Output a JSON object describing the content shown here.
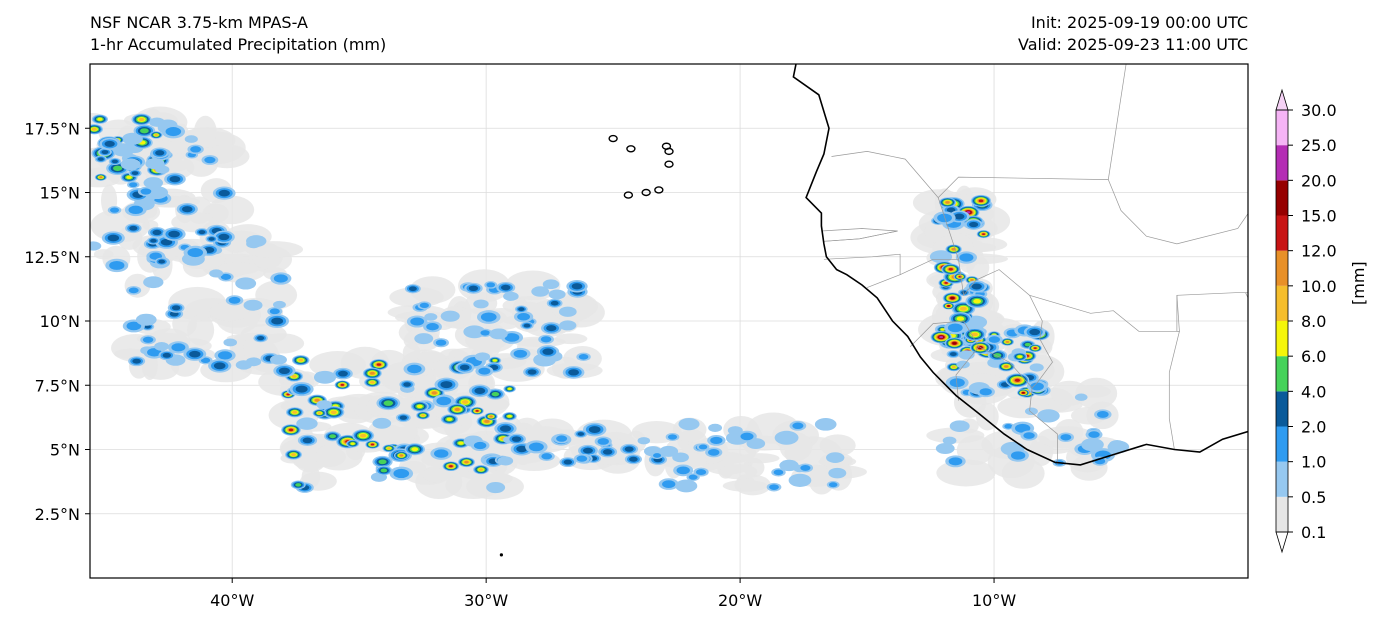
{
  "header": {
    "left_line1": "NSF NCAR 3.75-km MPAS-A",
    "left_line2": "1-hr Accumulated Precipitation (mm)",
    "right_line1": "Init: 2025-09-19 00:00 UTC",
    "right_line2": "Valid: 2025-09-23 11:00 UTC"
  },
  "map": {
    "lon_range": [
      -45.6,
      0.0
    ],
    "lat_range": [
      0.0,
      20.0
    ],
    "lon_ticks": [
      {
        "value": -40,
        "label": "40°W"
      },
      {
        "value": -30,
        "label": "30°W"
      },
      {
        "value": -20,
        "label": "20°W"
      },
      {
        "value": -10,
        "label": "10°W"
      }
    ],
    "lat_ticks": [
      {
        "value": 2.5,
        "label": "2.5°N"
      },
      {
        "value": 5,
        "label": "5°N"
      },
      {
        "value": 7.5,
        "label": "7.5°N"
      },
      {
        "value": 10,
        "label": "10°N"
      },
      {
        "value": 12.5,
        "label": "12.5°N"
      },
      {
        "value": 15,
        "label": "15°N"
      },
      {
        "value": 17.5,
        "label": "17.5°N"
      }
    ],
    "coastline": [
      [
        -17.8,
        20
      ],
      [
        -17.9,
        19.5
      ],
      [
        -16.9,
        18.8
      ],
      [
        -16.5,
        17.5
      ],
      [
        -16.7,
        16.5
      ],
      [
        -17.0,
        15.8
      ],
      [
        -17.4,
        14.8
      ],
      [
        -16.8,
        14.2
      ],
      [
        -16.8,
        13.7
      ],
      [
        -16.7,
        13.0
      ],
      [
        -16.6,
        12.5
      ],
      [
        -16.2,
        12.0
      ],
      [
        -15.8,
        11.8
      ],
      [
        -15.2,
        11.4
      ],
      [
        -14.6,
        10.9
      ],
      [
        -14.0,
        10.0
      ],
      [
        -13.4,
        9.4
      ],
      [
        -12.9,
        8.6
      ],
      [
        -12.4,
        8.0
      ],
      [
        -11.5,
        7.1
      ],
      [
        -10.6,
        6.4
      ],
      [
        -9.6,
        5.6
      ],
      [
        -8.7,
        5.0
      ],
      [
        -7.6,
        4.5
      ],
      [
        -6.6,
        4.4
      ],
      [
        -5.3,
        4.8
      ],
      [
        -4.0,
        5.2
      ],
      [
        -2.9,
        5.0
      ],
      [
        -1.9,
        4.9
      ],
      [
        -1.0,
        5.4
      ],
      [
        0.0,
        5.7
      ]
    ],
    "cape_verde": [
      [
        -25.0,
        17.1
      ],
      [
        -24.3,
        16.7
      ],
      [
        -22.9,
        16.8
      ],
      [
        -22.8,
        16.1
      ],
      [
        -24.4,
        14.9
      ],
      [
        -23.7,
        15.0
      ],
      [
        -23.2,
        15.1
      ],
      [
        -22.8,
        16.6
      ]
    ],
    "borders": [
      [
        [
          -16.4,
          16.4
        ],
        [
          -15.0,
          16.6
        ],
        [
          -13.5,
          16.3
        ],
        [
          -12.2,
          14.8
        ],
        [
          -11.4,
          15.6
        ],
        [
          -5.5,
          15.5
        ],
        [
          -4.8,
          20
        ]
      ],
      [
        [
          -16.8,
          13.5
        ],
        [
          -15.2,
          13.6
        ],
        [
          -13.8,
          13.5
        ],
        [
          -15.3,
          13.2
        ],
        [
          -16.7,
          13.1
        ]
      ],
      [
        [
          -16.7,
          12.4
        ],
        [
          -14.8,
          12.5
        ],
        [
          -13.7,
          12.6
        ],
        [
          -13.7,
          11.8
        ]
      ],
      [
        [
          -15.0,
          11.3
        ],
        [
          -13.7,
          11.8
        ],
        [
          -12.4,
          12.4
        ],
        [
          -11.4,
          12.4
        ],
        [
          -11.2,
          11.0
        ],
        [
          -10.7,
          11.6
        ],
        [
          -9.8,
          12.0
        ],
        [
          -8.6,
          11.0
        ],
        [
          -8.1,
          10.0
        ],
        [
          -8.2,
          9.3
        ],
        [
          -7.7,
          8.4
        ],
        [
          -8.3,
          7.6
        ],
        [
          -8.5,
          7.4
        ],
        [
          -8.6,
          6.5
        ],
        [
          -7.5,
          5.6
        ],
        [
          -7.5,
          4.4
        ]
      ],
      [
        [
          -13.3,
          9.0
        ],
        [
          -12.4,
          9.9
        ],
        [
          -11.2,
          10.0
        ],
        [
          -10.6,
          9.0
        ],
        [
          -11.5,
          7.9
        ],
        [
          -11.4,
          6.9
        ]
      ],
      [
        [
          -10.6,
          9.0
        ],
        [
          -9.4,
          8.4
        ],
        [
          -8.5,
          7.4
        ]
      ],
      [
        [
          -12.2,
          14.8
        ],
        [
          -11.6,
          13.0
        ],
        [
          -11.4,
          12.4
        ]
      ],
      [
        [
          -5.5,
          15.5
        ],
        [
          -5.0,
          14.3
        ],
        [
          -4.0,
          13.3
        ],
        [
          -2.8,
          13.0
        ],
        [
          -0.4,
          13.6
        ],
        [
          0.5,
          14.9
        ]
      ],
      [
        [
          -8.6,
          11.0
        ],
        [
          -6.2,
          10.3
        ],
        [
          -5.3,
          10.4
        ],
        [
          -4.3,
          9.6
        ],
        [
          -2.7,
          9.6
        ],
        [
          -2.8,
          11.0
        ],
        [
          -0.5,
          11.1
        ],
        [
          0.0,
          11.1
        ]
      ],
      [
        [
          -2.8,
          11.0
        ],
        [
          -2.8,
          9.6
        ],
        [
          -2.7,
          9.6
        ],
        [
          -3.1,
          8.0
        ],
        [
          -3.1,
          6.2
        ],
        [
          -2.9,
          5.0
        ]
      ],
      [
        [
          -0.1,
          11.1
        ],
        [
          0.3,
          10.3
        ],
        [
          0.5,
          8.8
        ],
        [
          0.6,
          7.4
        ],
        [
          0.9,
          6.0
        ],
        [
          1.2,
          6.1
        ]
      ],
      [
        [
          -16.7,
          13.1
        ],
        [
          -15.3,
          13.2
        ],
        [
          -13.8,
          13.5
        ]
      ]
    ],
    "colorbar": {
      "unit": "[mm]",
      "levels": [
        "0.1",
        "0.5",
        "1.0",
        "2.0",
        "4.0",
        "6.0",
        "8.0",
        "10.0",
        "12.0",
        "15.0",
        "20.0",
        "25.0",
        "30.0"
      ],
      "colors": [
        "#e6e6e6",
        "#96c8f0",
        "#2f9bf0",
        "#0a5a9a",
        "#46d25a",
        "#f5f50a",
        "#f5be2d",
        "#e89028",
        "#c81414",
        "#960000",
        "#b42db4",
        "#f5b4f5"
      ],
      "under_color": "#ffffff",
      "over_color": "#f5d2f5"
    }
  }
}
